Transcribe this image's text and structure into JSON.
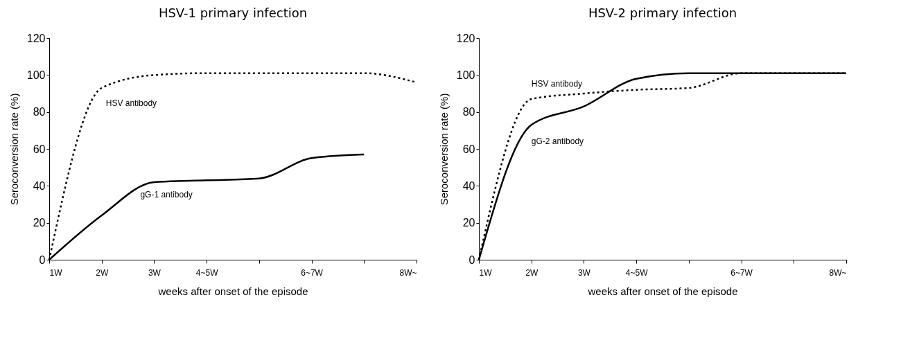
{
  "chart_data": [
    {
      "type": "line",
      "title": "HSV-1 primary  infection",
      "xlabel": "weeks after onset of the episode",
      "ylabel": "Seroconversion  rate    (%)",
      "categories": [
        "1W",
        "2W",
        "3W",
        "4~5W",
        null,
        "6~7W",
        null,
        "8W~"
      ],
      "series": [
        {
          "name": "HSV antibody",
          "color": "#000000",
          "line_style": "dotted",
          "values": [
            0,
            93,
            100,
            101,
            101,
            101,
            101,
            96
          ]
        },
        {
          "name": "gG-1 antibody",
          "color": "#000000",
          "line_style": "solid",
          "values": [
            0,
            24,
            42,
            43,
            44,
            55,
            57,
            null
          ]
        }
      ],
      "ylim": [
        0,
        120
      ],
      "yticks": [
        0,
        20,
        40,
        60,
        80,
        100,
        120
      ],
      "grid": false,
      "legend": false
    },
    {
      "type": "line",
      "title": "HSV-2 primary  infection",
      "xlabel": "weeks after onset of the episode",
      "ylabel": "Seroconversion  rate    (%)",
      "categories": [
        "1W",
        "2W",
        "3W",
        "4~5W",
        null,
        "6~7W",
        null,
        "8W~"
      ],
      "series": [
        {
          "name": "HSV antibody",
          "color": "#000000",
          "line_style": "dotted",
          "values": [
            0,
            87,
            90,
            92,
            93,
            101,
            101,
            101
          ]
        },
        {
          "name": "gG-2 antibody",
          "color": "#000000",
          "line_style": "solid",
          "values": [
            0,
            73,
            83,
            98,
            101,
            101,
            101,
            101
          ]
        }
      ],
      "ylim": [
        0,
        120
      ],
      "yticks": [
        0,
        20,
        40,
        60,
        80,
        100,
        120
      ],
      "grid": false,
      "legend": false
    }
  ]
}
